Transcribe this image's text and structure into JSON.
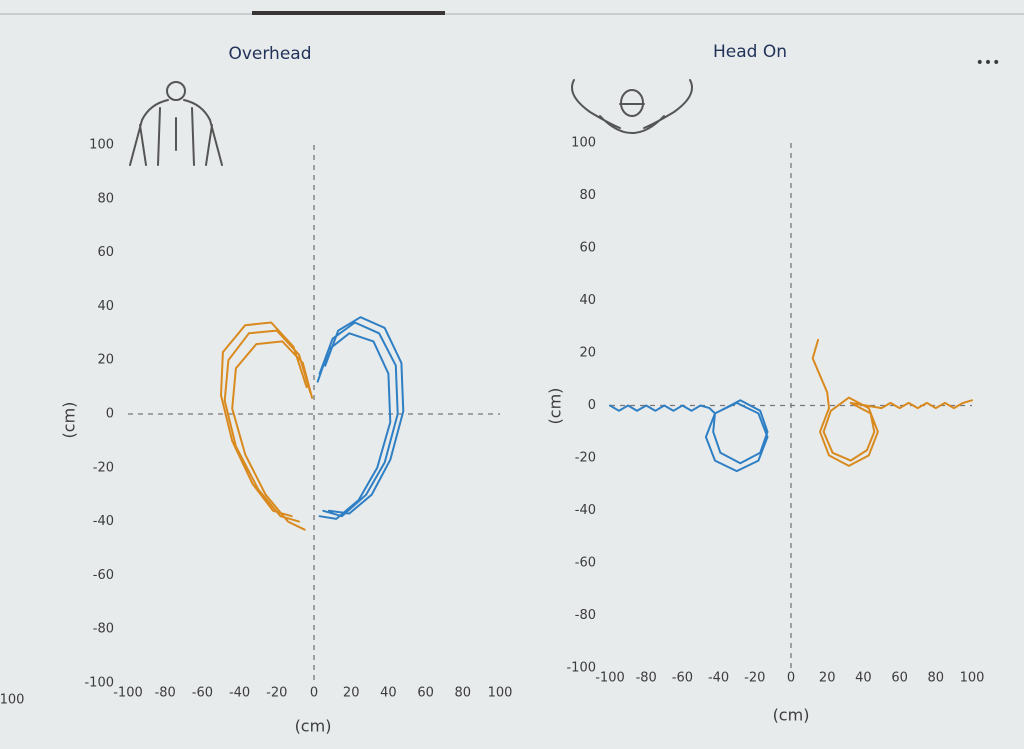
{
  "menu": "•••",
  "edge_fragment": "100",
  "chart_data": [
    {
      "type": "line",
      "title": "Overhead",
      "x_label": "(cm)",
      "y_label": "(cm)",
      "xlim": [
        -100,
        100
      ],
      "ylim": [
        -100,
        100
      ],
      "xticks": [
        -100,
        -80,
        -60,
        -40,
        -20,
        0,
        20,
        40,
        60,
        80,
        100
      ],
      "yticks": [
        -100,
        -80,
        -60,
        -40,
        -20,
        0,
        20,
        40,
        60,
        80,
        100
      ],
      "zero_lines": true,
      "series": [
        {
          "color": "#d98a1f",
          "x": [
            -2,
            -8,
            -20,
            -35,
            -46,
            -48,
            -42,
            -30,
            -18,
            -8,
            null,
            -4,
            -11,
            -23,
            -37,
            -49,
            -50,
            -44,
            -33,
            -22,
            -12,
            null,
            -1,
            -6,
            -17,
            -31,
            -42,
            -44,
            -37,
            -26,
            -14,
            -5
          ],
          "values": [
            8,
            22,
            31,
            30,
            20,
            5,
            -12,
            -28,
            -38,
            -40,
            null,
            10,
            25,
            34,
            33,
            23,
            7,
            -10,
            -26,
            -36,
            -38,
            null,
            6,
            19,
            27,
            26,
            17,
            2,
            -15,
            -30,
            -40,
            -43
          ]
        },
        {
          "color": "#2f7fc4",
          "x": [
            3,
            10,
            22,
            35,
            44,
            45,
            38,
            28,
            15,
            5,
            null,
            6,
            13,
            25,
            38,
            47,
            48,
            41,
            31,
            19,
            8,
            null,
            2,
            8,
            19,
            32,
            40,
            41,
            34,
            24,
            12,
            3
          ],
          "values": [
            15,
            28,
            34,
            30,
            18,
            0,
            -18,
            -30,
            -38,
            -36,
            null,
            18,
            31,
            36,
            32,
            19,
            1,
            -17,
            -30,
            -37,
            -36,
            null,
            12,
            24,
            30,
            27,
            15,
            -3,
            -20,
            -32,
            -39,
            -38
          ]
        }
      ]
    },
    {
      "type": "line",
      "title": "Head On",
      "x_label": "(cm)",
      "y_label": "(cm)",
      "xlim": [
        -100,
        100
      ],
      "ylim": [
        -100,
        100
      ],
      "xticks": [
        -100,
        -80,
        -60,
        -40,
        -20,
        0,
        20,
        40,
        60,
        80,
        100
      ],
      "yticks": [
        -100,
        -80,
        -60,
        -40,
        -20,
        0,
        20,
        40,
        60,
        80,
        100
      ],
      "zero_lines": true,
      "series": [
        {
          "color": "#2f7fc4",
          "x": [
            -100,
            -95,
            -90,
            -85,
            -80,
            -75,
            -70,
            -65,
            -60,
            -55,
            -50,
            -45,
            -42,
            -47,
            -42,
            -30,
            -18,
            -13,
            -18,
            -30,
            -42,
            -43,
            -39,
            -28,
            -17,
            -13,
            -17,
            -28,
            -39
          ],
          "values": [
            0,
            -2,
            0,
            -2,
            0,
            -2,
            0,
            -2,
            0,
            -2,
            0,
            -1,
            -3,
            -12,
            -21,
            -25,
            -21,
            -12,
            -3,
            1,
            -3,
            -10,
            -18,
            -22,
            -18,
            -10,
            -2,
            2,
            -2
          ]
        },
        {
          "color": "#d98a1f",
          "x": [
            15,
            12,
            20,
            21,
            16,
            21,
            32,
            43,
            48,
            43,
            32,
            22,
            18,
            23,
            33,
            42,
            46,
            44,
            33,
            50,
            55,
            60,
            65,
            70,
            75,
            80,
            85,
            90,
            95,
            100
          ],
          "values": [
            25,
            18,
            5,
            -1,
            -10,
            -19,
            -23,
            -19,
            -10,
            -1,
            3,
            -2,
            -10,
            -18,
            -21,
            -17,
            -10,
            -3,
            1,
            -1,
            1,
            -1,
            1,
            -1,
            1,
            -1,
            1,
            -1,
            1,
            2
          ]
        }
      ]
    }
  ]
}
